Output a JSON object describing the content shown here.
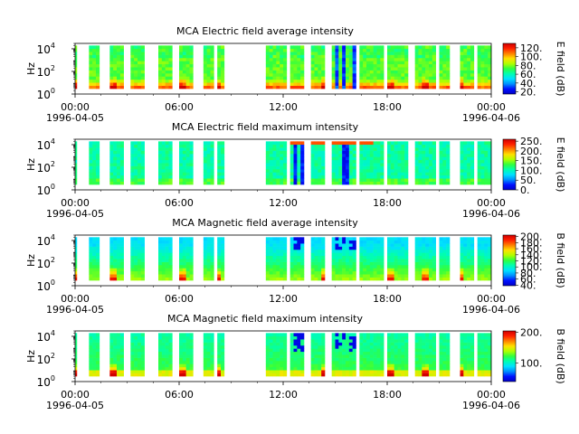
{
  "colors": {
    "colormap": [
      "#0000c8",
      "#0010ff",
      "#0090ff",
      "#00e0ff",
      "#00ffb0",
      "#30ff40",
      "#b0ff00",
      "#ffe000",
      "#ff8000",
      "#ff2000",
      "#d00000"
    ]
  },
  "chart_data": [
    {
      "type": "heatmap",
      "title": "MCA  Electric field average intensity",
      "ylabel": "Hz",
      "y_scale": "log",
      "yticks": [
        {
          "label": "10",
          "exp": "0"
        },
        {
          "label": "10",
          "exp": "2"
        },
        {
          "label": "10",
          "exp": "4"
        }
      ],
      "ylim": [
        1,
        30000
      ],
      "x_range_hours": [
        0,
        24
      ],
      "xticks": [
        {
          "label": "00:00",
          "date": "1996-04-05"
        },
        {
          "label": "06:00",
          "date": ""
        },
        {
          "label": "12:00",
          "date": ""
        },
        {
          "label": "18:00",
          "date": ""
        },
        {
          "label": "00:00",
          "date": "1996-04-06"
        }
      ],
      "colorbar": {
        "label": "E field (dB)",
        "range": [
          15,
          130
        ],
        "ticks": [
          "20.",
          "40.",
          "60.",
          "80.",
          "100.",
          "120."
        ]
      },
      "data_segments_hours": [
        [
          0.0,
          0.1
        ],
        [
          0.8,
          1.4
        ],
        [
          2.0,
          2.8
        ],
        [
          3.2,
          4.0
        ],
        [
          4.8,
          5.6
        ],
        [
          6.0,
          6.8
        ],
        [
          7.4,
          8.0
        ],
        [
          8.2,
          8.6
        ],
        [
          11.0,
          12.2
        ],
        [
          12.4,
          13.2
        ],
        [
          13.6,
          14.4
        ],
        [
          14.8,
          16.2
        ],
        [
          16.4,
          17.8
        ],
        [
          18.0,
          19.2
        ],
        [
          19.6,
          20.8
        ],
        [
          21.0,
          21.6
        ],
        [
          22.2,
          23.0
        ],
        [
          23.2,
          24.0
        ]
      ]
    },
    {
      "type": "heatmap",
      "title": "MCA  Electric field maximum intensity",
      "ylabel": "Hz",
      "y_scale": "log",
      "yticks": [
        {
          "label": "10",
          "exp": "0"
        },
        {
          "label": "10",
          "exp": "2"
        },
        {
          "label": "10",
          "exp": "4"
        }
      ],
      "ylim": [
        1,
        30000
      ],
      "x_range_hours": [
        0,
        24
      ],
      "xticks": [
        {
          "label": "00:00",
          "date": "1996-04-05"
        },
        {
          "label": "06:00",
          "date": ""
        },
        {
          "label": "12:00",
          "date": ""
        },
        {
          "label": "18:00",
          "date": ""
        },
        {
          "label": "00:00",
          "date": "1996-04-06"
        }
      ],
      "colorbar": {
        "label": "E field (dB)",
        "range": [
          0,
          260
        ],
        "ticks": [
          "0.",
          "50.",
          "100.",
          "150.",
          "200.",
          "250."
        ]
      },
      "data_segments_hours": [
        [
          0.0,
          0.1
        ],
        [
          0.8,
          1.4
        ],
        [
          2.0,
          2.8
        ],
        [
          3.2,
          4.0
        ],
        [
          4.8,
          5.6
        ],
        [
          6.0,
          6.8
        ],
        [
          7.4,
          8.0
        ],
        [
          8.2,
          8.6
        ],
        [
          11.0,
          12.2
        ],
        [
          12.4,
          13.2
        ],
        [
          13.6,
          14.4
        ],
        [
          14.8,
          16.2
        ],
        [
          16.4,
          17.8
        ],
        [
          18.0,
          19.2
        ],
        [
          19.6,
          20.8
        ],
        [
          21.0,
          21.6
        ],
        [
          22.2,
          23.0
        ],
        [
          23.2,
          24.0
        ]
      ]
    },
    {
      "type": "heatmap",
      "title": "MCA  Magnetic field average intensity",
      "ylabel": "Hz",
      "y_scale": "log",
      "yticks": [
        {
          "label": "10",
          "exp": "0"
        },
        {
          "label": "10",
          "exp": "2"
        },
        {
          "label": "10",
          "exp": "4"
        }
      ],
      "ylim": [
        1,
        30000
      ],
      "x_range_hours": [
        0,
        24
      ],
      "xticks": [
        {
          "label": "00:00",
          "date": "1996-04-05"
        },
        {
          "label": "06:00",
          "date": ""
        },
        {
          "label": "12:00",
          "date": ""
        },
        {
          "label": "18:00",
          "date": ""
        },
        {
          "label": "00:00",
          "date": "1996-04-06"
        }
      ],
      "colorbar": {
        "label": "B field (dB)",
        "range": [
          38,
          205
        ],
        "ticks": [
          "40.",
          "60.",
          "80.",
          "100.",
          "120.",
          "140.",
          "160.",
          "180.",
          "200."
        ]
      },
      "data_segments_hours": [
        [
          0.0,
          0.1
        ],
        [
          0.8,
          1.4
        ],
        [
          2.0,
          2.8
        ],
        [
          3.2,
          4.0
        ],
        [
          4.8,
          5.6
        ],
        [
          6.0,
          6.8
        ],
        [
          7.4,
          8.0
        ],
        [
          8.2,
          8.6
        ],
        [
          11.0,
          12.2
        ],
        [
          12.4,
          13.2
        ],
        [
          13.6,
          14.4
        ],
        [
          14.8,
          16.2
        ],
        [
          16.4,
          17.8
        ],
        [
          18.0,
          19.2
        ],
        [
          19.6,
          20.8
        ],
        [
          21.0,
          21.6
        ],
        [
          22.2,
          23.0
        ],
        [
          23.2,
          24.0
        ]
      ]
    },
    {
      "type": "heatmap",
      "title": "MCA  Magnetic field maximum intensity",
      "ylabel": "Hz",
      "y_scale": "log",
      "yticks": [
        {
          "label": "10",
          "exp": "0"
        },
        {
          "label": "10",
          "exp": "2"
        },
        {
          "label": "10",
          "exp": "4"
        }
      ],
      "ylim": [
        1,
        30000
      ],
      "x_range_hours": [
        0,
        24
      ],
      "xticks": [
        {
          "label": "00:00",
          "date": "1996-04-05"
        },
        {
          "label": "06:00",
          "date": ""
        },
        {
          "label": "12:00",
          "date": ""
        },
        {
          "label": "18:00",
          "date": ""
        },
        {
          "label": "00:00",
          "date": "1996-04-06"
        }
      ],
      "colorbar": {
        "label": "B field (dB)",
        "range": [
          40,
          205
        ],
        "ticks": [
          "100.",
          "200."
        ]
      },
      "data_segments_hours": [
        [
          0.0,
          0.1
        ],
        [
          0.8,
          1.4
        ],
        [
          2.0,
          2.8
        ],
        [
          3.2,
          4.0
        ],
        [
          4.8,
          5.6
        ],
        [
          6.0,
          6.8
        ],
        [
          7.4,
          8.0
        ],
        [
          8.2,
          8.6
        ],
        [
          11.0,
          12.2
        ],
        [
          12.4,
          13.2
        ],
        [
          13.6,
          14.4
        ],
        [
          14.8,
          16.2
        ],
        [
          16.4,
          17.8
        ],
        [
          18.0,
          19.2
        ],
        [
          19.6,
          20.8
        ],
        [
          21.0,
          21.6
        ],
        [
          22.2,
          23.0
        ],
        [
          23.2,
          24.0
        ]
      ]
    }
  ]
}
